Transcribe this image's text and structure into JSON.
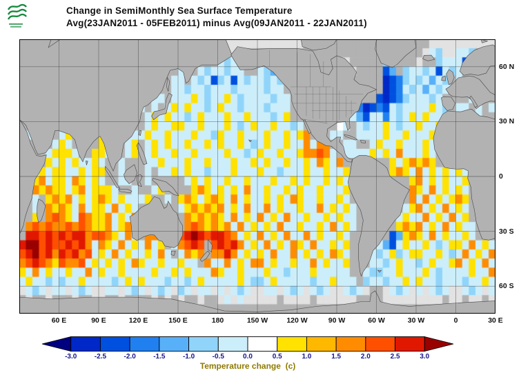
{
  "chart_data": {
    "type": "heatmap",
    "title": "Change in SemiMonthly Sea Surface Temperature",
    "subtitle": "Avg(23JAN2011 - 05FEB2011) minus Avg(09JAN2011 - 22JAN2011)",
    "unit": "degrees C",
    "projection": "equirectangular, Pacific-centered",
    "lon_range": [
      30,
      390
    ],
    "lat_range": [
      -75,
      75
    ],
    "lon_ticks": [
      {
        "text": "60 E",
        "lon": 60
      },
      {
        "text": "90 E",
        "lon": 90
      },
      {
        "text": "120 E",
        "lon": 120
      },
      {
        "text": "150 E",
        "lon": 150
      },
      {
        "text": "180",
        "lon": 180
      },
      {
        "text": "150 W",
        "lon": 210
      },
      {
        "text": "120 W",
        "lon": 240
      },
      {
        "text": "90 W",
        "lon": 270
      },
      {
        "text": "60 W",
        "lon": 300
      },
      {
        "text": "30 W",
        "lon": 330
      },
      {
        "text": "0",
        "lon": 360
      },
      {
        "text": "30 E",
        "lon": 390
      }
    ],
    "lat_ticks": [
      {
        "text": "60 N",
        "lat": 60
      },
      {
        "text": "30 N",
        "lat": 30
      },
      {
        "text": "0",
        "lat": 0
      },
      {
        "text": "30 S",
        "lat": -30
      },
      {
        "text": "60 S",
        "lat": -60
      }
    ],
    "colorbar": {
      "caption": "Temperature change  (c)",
      "ticks": [
        "-3.0",
        "-2.5",
        "-2.0",
        "-1.5",
        "-1.0",
        "-0.5",
        "0.0",
        "0.5",
        "1.0",
        "1.5",
        "2.0",
        "2.5",
        "3.0"
      ],
      "colors": [
        "#000080",
        "#0028c8",
        "#0050e0",
        "#2080f0",
        "#58b0f8",
        "#90d4fa",
        "#cceefb",
        "#ffffff",
        "#ffe200",
        "#ffb800",
        "#ff8c00",
        "#ff5000",
        "#e01800",
        "#990000"
      ],
      "tick_color": "#14148c",
      "caption_color": "#8f7a00"
    },
    "grid": {
      "cols": 72,
      "rows": 30,
      "cell_deg": 5,
      "origin": "row-major from 75N,30E eastward; each cell 5x5 degrees",
      "palette": {
        "n": {
          "value": -3.2,
          "color": "#000080"
        },
        "N": {
          "value": -2.75,
          "color": "#0028c8"
        },
        "b": {
          "value": -2.25,
          "color": "#0050e0"
        },
        "B": {
          "value": -1.75,
          "color": "#2080f0"
        },
        "C": {
          "value": -1.25,
          "color": "#58b0f8"
        },
        "c": {
          "value": -0.75,
          "color": "#90d4fa"
        },
        ",": {
          "value": -0.25,
          "color": "#cceefb"
        },
        ".": {
          "value": 0.25,
          "color": "#ffffff"
        },
        "y": {
          "value": 0.75,
          "color": "#ffe200"
        },
        "g": {
          "value": 1.25,
          "color": "#ffb800"
        },
        "o": {
          "value": 1.75,
          "color": "#ff8c00"
        },
        "d": {
          "value": 2.25,
          "color": "#ff5000"
        },
        "r": {
          "value": 2.75,
          "color": "#e01800"
        },
        "R": {
          "value": 3.3,
          "color": "#990000"
        },
        "L": {
          "value": null,
          "color": "#b2b2b2"
        },
        "x": {
          "value": null,
          "color": "#e2e2e2"
        }
      },
      "cells": [
        [
          "LLLLLL",
          "LLLLLL",
          "LLLLLL",
          "LLLLLL",
          "LLLLLL",
          "Lxxxxx",
          "xxxxxx",
          "xLLLLL",
          "LLLLLL",
          "LLLLLL",
          "LLxxxx",
          "xxxxxx"
        ],
        [
          "LLLLLL",
          "LLLLLL",
          "LLLLLL",
          "LLLLLL",
          "LLLLLL",
          "LxxxLL",
          "LLLLLL",
          "LLLLLL",
          "LLLLLL",
          "LLLLLL",
          "Lx,cxx",
          ",,cLLL"
        ],
        [
          "LLLLLL",
          "LLLLLL",
          "LLLLLL",
          "LLLLLL",
          "LLLLLL",
          ",c,LLL",
          "LLLLLL",
          "LLLLLL",
          "xxLLLL",
          "Lc,LLL",
          "xLLc,,",
          ",bLLLL"
        ],
        [
          "LLLLLL",
          "LLLLLL",
          "LLLLLL",
          "LLLLLL",
          ",LL,c,",
          ",c,,LL",
          ",cCLLL",
          "LLLLLL",
          "xxxLLL",
          "LbCLc,",
          ",c,b,c",
          ",LLLLL"
        ],
        [
          "LLLLLL",
          "LLLLLL",
          "LLLLLL",
          "LLLLL,",
          ",L,c,b",
          "c,b,c,",
          ",c,cLL",
          "LLLLLL",
          "xLLLLL",
          "LNbBc,",
          "c,C,cL",
          ",LLLLL"
        ],
        [
          "LLLLLL",
          "LLLLLL",
          "LLLLLL",
          "LLLLL,",
          ",c,,c,",
          ",,c,,,",
          ",c,,LL",
          "LLLLLL",
          "LLLLLL",
          "LNbB,c",
          ",C,c,,",
          "LLLLLL"
        ],
        [
          ",,LLLL",
          "LLLLLL",
          "LLLLLL",
          "LL,,L,",
          ",,y,c,",
          ",y,c,,",
          ",,c,,L",
          "LLLLLL",
          "LLLLLL",
          "bNbBc,",
          ",,c,LL",
          "LL,LLL"
        ],
        [
          "LLLLLL",
          "LLLLLL",
          "LLLLLL",
          ",L,L,y",
          ",y,,c,",
          "y,,c,,",
          ",c,,,L",
          "LLLLLL",
          "LLLBNb",
          "Bb,c,,",
          ",,y,cL",
          ",,L,L,"
        ],
        [
          "LLLLLL",
          "LLLLLL",
          "LLLLLL",
          "L,y,y,",
          ",c,y,,",
          ",y,,y,",
          ",,c,yL",
          "LLLLLL",
          "LL,Cb,",
          ",B,c,y",
          ",y,,c,",
          "LL,,LL"
        ],
        [
          "LLLLLL",
          "LLLLLL",
          "LLLLLL",
          "L,y,,y",
          "y,,y,,",
          ",y,c,y",
          ",,y,,c",
          ",LLLLL",
          ".,L,c,",
          ",y,c,,",
          "y,,y,,",
          "LLLLLL"
        ],
        [
          "L,LLLL",
          ",yLLLL",
          "y,LL,,",
          ",y,,y,",
          ",,y,,c",
          "y,,y,,",
          ",y,,y,",
          "yoLLL,",
          ",LL,,,",
          ",y,,y,",
          ",,y,,y",
          "LLLLLL"
        ],
        [
          "LLLLL,",
          "y,LLLL",
          "yyLL,y",
          "L,y,y,",
          ",y,,y,",
          "y,,y,c",
          ",y,,y,",
          ",o,ooL",
          "L,,LL,",
          "y,,y,,",
          ",y,,y,",
          "LLLLLL"
        ],
        [
          "LLLL,y",
          "yy,LLy",
          "y,LL,y",
          "L,y,,y",
          ",,y,,,",
          ",y,,c,",
          "y,,y,,",
          "yoodo,",
          "L,,,,y",
          ",y,o,,",
          ",y,LLL",
          "LLLLLL"
        ],
        [
          "LLLLy,",
          "y,y,,y",
          ",LL,LL",
          "L,,y,,",
          ",y,,y,",
          ",,y,,y",
          ",y,,y,",
          ",y,oy,",
          "oLLLLL",
          "LLy,yo",
          "yoyLLL",
          "LLLLLL"
        ],
        [
          "LL,y,y",
          "y,,y,y",
          "yLL,LL",
          "L,L,,y",
          ",y,,c,",
          ",,y,,,",
          "y,,c,,",
          ",y,,y,",
          ",yLLLL",
          "LLyoy,",
          "o,y,y,",
          "y,LLLL"
        ],
        [
          "LLyo,y",
          "y,oy,y",
          ",LL,,L",
          "L,LLLL",
          "L,y,y,",
          ",y,,y,",
          ",,y,,y",
          ",y,,y,",
          "y,LLLL",
          "LLLLLy",
          "o,y,y,",
          ",yLLLL"
        ],
        [
          "LLoyoy",
          "y,yo,y",
          "yy,LL,",
          "LL,yLL",
          "LLyoy,",
          "y,y,o,",
          ",y,,y,",
          "y,,y,,",
          ",yLLLL",
          "LLLLLo",
          "y,o,y,",
          "y,LLLL"
        ],
        [
          "LL,Lyo",
          "yo,y,y",
          "oy,y,,",
          ",yLL,L",
          "yoy,yo",
          "y,o,y,",
          ",y,y,o",
          "y,,y,,",
          "y,LLLL",
          "LLLLLo",
          ",o,y,y",
          "oyLLLL"
        ],
        [
          "LL,Loy",
          "oy,o,y",
          "y,o,y,",
          "LLLLLL",
          ",yoyoy",
          "o,y,o,",
          ",o,y,,",
          "y,,o,y",
          ",y,LLL",
          "LLLL,y",
          "o,y,o,",
          "y,LLLL"
        ],
        [
          "LLyLod",
          "oy,doy",
          "yo,y,o",
          "LLLLLL",
          "Loyoyo",
          "y,o,y,",
          "o,y,o,",
          ",y,,y,",
          "y,,LLL",
          "LLL,y,",
          ",o,y,o",
          ",yLLLL"
        ],
        [
          "Lododo",
          "ododoy",
          "yo,yo,",
          "LLLLLL",
          "Lodoyo",
          "yo,o,y",
          ",y,o,,",
          "y,,y,o",
          ",y,LLL",
          "LLLyoy",
          "o,y,o,",
          "y,,LLL"
        ],
        [
          "Lrrdrd",
          "rdrrod",
          "doy,o,",
          "LooLL,",
          "drRrdr",
          "rdo,y,",
          "o,y,o,",
          ",o,y,,",
          "y,LLLL",
          "LLbCyo",
          "y,o,y,",
          ",y,LLL"
        ],
        [
          "rRRdrd",
          "drdro,",
          "oy,o,y",
          ",o,yL,",
          "odrdLd",
          "rdro,y",
          ",o,y,o",
          "y,o,,y",
          ",yLLLL",
          ",Cb,y,",
          ",y,c,y",
          "y,o,y,"
        ],
        [
          "drRdro",
          "rdrod,",
          "y,o,y,",
          ",y,o,L",
          ",oyoLo",
          "oro,y,",
          "y,o,,o",
          ",y,y,o",
          "y,LLL,",
          "c,yc,y",
          "y,,y,c",
          ",o,y,o"
        ],
        [
          "odrdoy",
          "dood,y",
          ",y,y,o",
          "y,,y,,",
          "y,,Lo,",
          ",o,y,o",
          "o,y,,y",
          ",,o,y,",
          ",yLLL,",
          ",c,y,,",
          "c,y,,y",
          "o,y,o,"
        ],
        [
          "y,o,y,",
          ",y,,o,",
          "y,,y,,",
          ",,y,,y",
          ",y,,,o",
          "y,,y,,",
          ",y,,c,",
          ",,y,,,",
          ",,LL,c",
          "c,,y,,",
          ",y,c,,",
          ",,y,,o"
        ],
        [
          ",y,,c,",
          "c,,y,,",
          ",,c,y,",
          "y,,,c,",
          ",c,y,,",
          ",,,y,c",
          "c,y,,,",
          ",,c,,y",
          ",,,Lc,",
          ",c,,y,",
          "y,,c,,",
          ",c,,y,"
        ],
        [
          "x,c,x,",
          ",x,c,x",
          "x,,x,c",
          ",x,c,x",
          "c,x,,x",
          ",x,c,x",
          "x,,x,c",
          ",x,c,x",
          "x,c,xL",
          "Lx,c,x",
          ",x,c,x",
          "x,c,x,"
        ],
        [
          "LxLLxL",
          "LLxLLx",
          "xLLxLL",
          "LLxLxL",
          "xLLxLL",
          "x,x,xx",
          "xxxLxx",
          "xxLxxx",
          "xxxLLL",
          "Lxxxxx",
          "xxxxLx",
          "xLxxLx"
        ],
        [
          "LLLLLL",
          "LLLLLL",
          "LLLLLL",
          "LLLLLL",
          "LLLLLL",
          "LLLLLL",
          "LLLLLL",
          "LLLLLL",
          "LLLLLL",
          "LLLLLL",
          "LLLLLL",
          "LLLLLL"
        ]
      ]
    }
  }
}
